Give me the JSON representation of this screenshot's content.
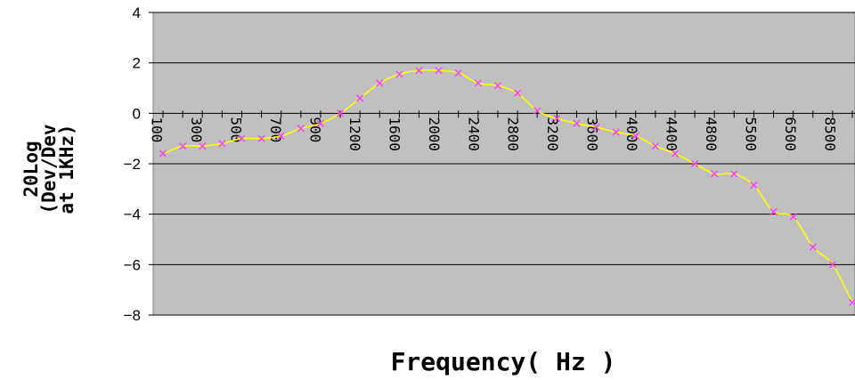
{
  "chart_data": {
    "type": "line",
    "title": "",
    "xlabel": "Frequency( Hz )",
    "ylabel_lines": [
      "20Log",
      "(Dev/Dev",
      "at 1KHz)"
    ],
    "ylim": [
      -8,
      4
    ],
    "y_ticks": [
      "4",
      "2",
      "0",
      "-2",
      "-4",
      "-6",
      "-8"
    ],
    "y_tick_values": [
      4,
      2,
      0,
      -2,
      -4,
      -6,
      -8
    ],
    "grid": true,
    "legend": "none",
    "x_tick_labels": [
      "100",
      "300",
      "500",
      "700",
      "900",
      "1200",
      "1600",
      "2000",
      "2400",
      "2800",
      "3200",
      "3600",
      "4000",
      "4400",
      "4800",
      "5500",
      "6500",
      "8500"
    ],
    "series": [
      {
        "values": [
          -1.6,
          -1.3,
          -1.3,
          -1.2,
          -1.0,
          -1.0,
          -0.9,
          -0.6,
          -0.4,
          0.0,
          0.6,
          1.2,
          1.55,
          1.7,
          1.7,
          1.6,
          1.2,
          1.1,
          0.8,
          0.1,
          -0.2,
          -0.4,
          -0.55,
          -0.75,
          -0.9,
          -1.3,
          -1.6,
          -2.0,
          -2.4,
          -2.4,
          -2.85,
          -3.9,
          -4.1,
          -5.3,
          -6.0,
          -7.5
        ]
      }
    ],
    "colors": {
      "plot_background": "#c0c0c0",
      "gridline": "#000000",
      "line": "#ffff00",
      "marker": "#ff33ff"
    }
  }
}
